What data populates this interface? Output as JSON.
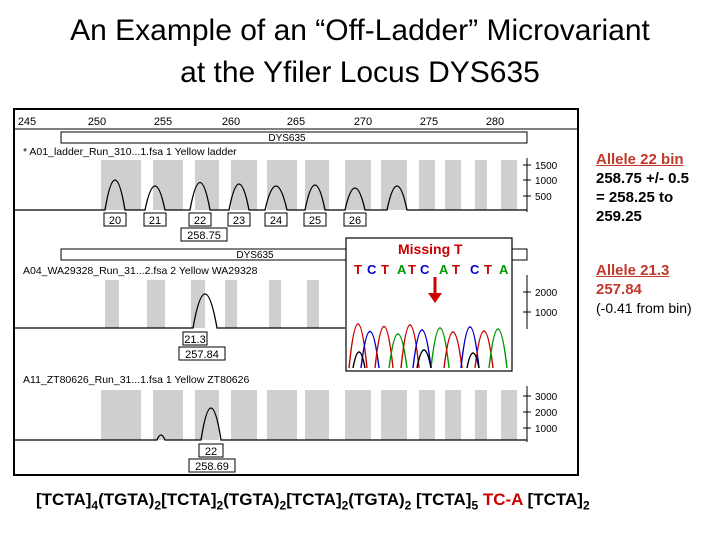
{
  "title": {
    "line1": "An Example of an “Off-Ladder” Microvariant",
    "line2": "at the Yfiler Locus DYS635"
  },
  "axis_ticks": [
    "245",
    "250",
    "255",
    "260",
    "265",
    "270",
    "275",
    "280"
  ],
  "locus_label": "DYS635",
  "ladder_panel": {
    "file": "* A01_ladder_Run_310...1.fsa  1 Yellow  ladder",
    "yticks": [
      "1500",
      "1000",
      "500"
    ],
    "allele_labels": [
      "20",
      "21",
      "22",
      "23",
      "24",
      "25",
      "26"
    ],
    "size_label": "258.75"
  },
  "sample1_panel": {
    "file": "A04_WA29328_Run_31...2.fsa  2 Yellow  WA29328",
    "yticks": [
      "2000",
      "1000"
    ],
    "allele": "21.3",
    "size": "257.84"
  },
  "sample2_panel": {
    "file": "A11_ZT80626_Run_31...1.fsa  1 Yellow  ZT80626",
    "yticks": [
      "3000",
      "2000",
      "1000"
    ],
    "allele": "22",
    "size": "258.69"
  },
  "inset": {
    "label": "Missing T",
    "bases": [
      "T",
      "C",
      "T",
      "A",
      "T",
      "C",
      "A",
      "T",
      "C",
      "T",
      "A"
    ]
  },
  "notes": {
    "allele22": {
      "title": "Allele 22 bin",
      "line1": "258.75 +/- 0.5",
      "line2": "= 258.25 to",
      "line3": "259.25"
    },
    "allele213": {
      "title": "Allele 21.3",
      "size": "257.84",
      "diff": "(-0.41 from bin)"
    }
  },
  "sequence": {
    "p1": "[TCTA]",
    "s1": "4",
    "p2": "(TGTA)",
    "s2": "2",
    "p3": "[TCTA]",
    "s3": "2",
    "p4": "(TGTA)",
    "s4": "2",
    "p5": "[TCTA]",
    "s5": "2",
    "p6": "(TGTA)",
    "s6": "2",
    "p7": " [TCTA]",
    "s7": "5",
    "red": " TC-A",
    "p8": " [TCTA]",
    "s8": "2"
  },
  "colors": {
    "title": "#000000",
    "note_red": "#c0392b",
    "base_red": "#cc0000",
    "base_blue": "#0000cc",
    "trace_green": "#009900",
    "trace_blue": "#0000cc",
    "trace_red": "#cc0000",
    "bin_gray": "#cfcfcf"
  }
}
